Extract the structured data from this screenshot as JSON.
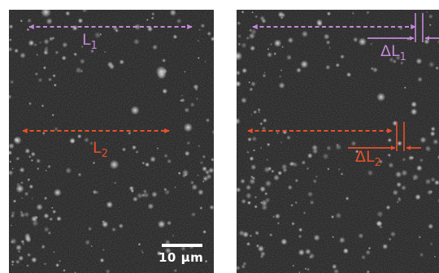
{
  "colors": {
    "length1": "#c488d8",
    "length2": "#e8502a",
    "scale_bar": "#ffffff",
    "background": "#2b2b2b"
  },
  "labels": {
    "L1": {
      "base": "L",
      "sub": "1"
    },
    "L2": {
      "base": "L",
      "sub": "2"
    },
    "dL1": {
      "base": "ΔL",
      "sub": "1"
    },
    "dL2": {
      "base": "ΔL",
      "sub": "2"
    }
  },
  "scale_bar": {
    "label": "10 µm"
  }
}
